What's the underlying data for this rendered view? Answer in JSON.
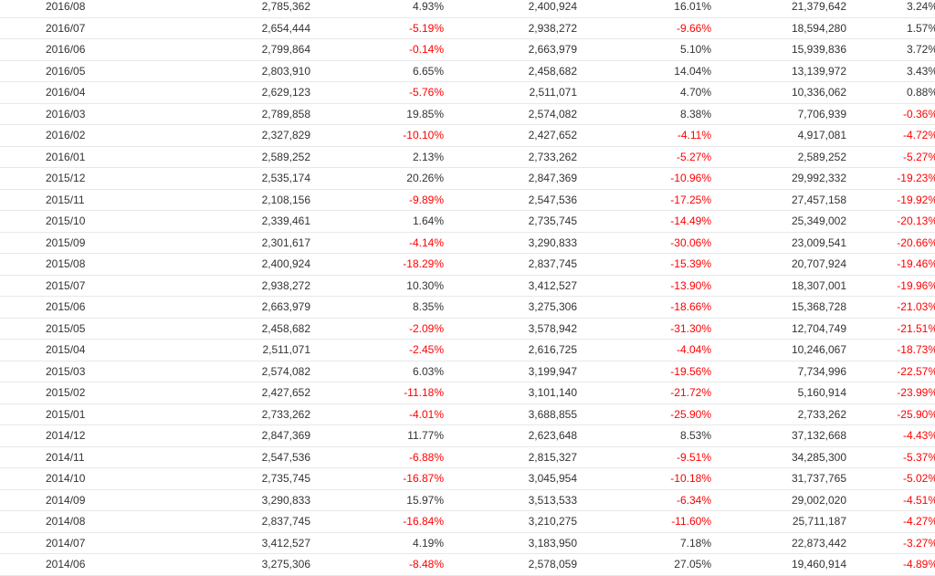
{
  "colors": {
    "negative": "#ff0000",
    "positive": "#333333",
    "row_border": "#e8e8e8"
  },
  "rows": [
    [
      "2016/08",
      "2,785,362",
      "4.93%",
      "2,400,924",
      "16.01%",
      "21,379,642",
      "3.24%"
    ],
    [
      "2016/07",
      "2,654,444",
      "-5.19%",
      "2,938,272",
      "-9.66%",
      "18,594,280",
      "1.57%"
    ],
    [
      "2016/06",
      "2,799,864",
      "-0.14%",
      "2,663,979",
      "5.10%",
      "15,939,836",
      "3.72%"
    ],
    [
      "2016/05",
      "2,803,910",
      "6.65%",
      "2,458,682",
      "14.04%",
      "13,139,972",
      "3.43%"
    ],
    [
      "2016/04",
      "2,629,123",
      "-5.76%",
      "2,511,071",
      "4.70%",
      "10,336,062",
      "0.88%"
    ],
    [
      "2016/03",
      "2,789,858",
      "19.85%",
      "2,574,082",
      "8.38%",
      "7,706,939",
      "-0.36%"
    ],
    [
      "2016/02",
      "2,327,829",
      "-10.10%",
      "2,427,652",
      "-4.11%",
      "4,917,081",
      "-4.72%"
    ],
    [
      "2016/01",
      "2,589,252",
      "2.13%",
      "2,733,262",
      "-5.27%",
      "2,589,252",
      "-5.27%"
    ],
    [
      "2015/12",
      "2,535,174",
      "20.26%",
      "2,847,369",
      "-10.96%",
      "29,992,332",
      "-19.23%"
    ],
    [
      "2015/11",
      "2,108,156",
      "-9.89%",
      "2,547,536",
      "-17.25%",
      "27,457,158",
      "-19.92%"
    ],
    [
      "2015/10",
      "2,339,461",
      "1.64%",
      "2,735,745",
      "-14.49%",
      "25,349,002",
      "-20.13%"
    ],
    [
      "2015/09",
      "2,301,617",
      "-4.14%",
      "3,290,833",
      "-30.06%",
      "23,009,541",
      "-20.66%"
    ],
    [
      "2015/08",
      "2,400,924",
      "-18.29%",
      "2,837,745",
      "-15.39%",
      "20,707,924",
      "-19.46%"
    ],
    [
      "2015/07",
      "2,938,272",
      "10.30%",
      "3,412,527",
      "-13.90%",
      "18,307,001",
      "-19.96%"
    ],
    [
      "2015/06",
      "2,663,979",
      "8.35%",
      "3,275,306",
      "-18.66%",
      "15,368,728",
      "-21.03%"
    ],
    [
      "2015/05",
      "2,458,682",
      "-2.09%",
      "3,578,942",
      "-31.30%",
      "12,704,749",
      "-21.51%"
    ],
    [
      "2015/04",
      "2,511,071",
      "-2.45%",
      "2,616,725",
      "-4.04%",
      "10,246,067",
      "-18.73%"
    ],
    [
      "2015/03",
      "2,574,082",
      "6.03%",
      "3,199,947",
      "-19.56%",
      "7,734,996",
      "-22.57%"
    ],
    [
      "2015/02",
      "2,427,652",
      "-11.18%",
      "3,101,140",
      "-21.72%",
      "5,160,914",
      "-23.99%"
    ],
    [
      "2015/01",
      "2,733,262",
      "-4.01%",
      "3,688,855",
      "-25.90%",
      "2,733,262",
      "-25.90%"
    ],
    [
      "2014/12",
      "2,847,369",
      "11.77%",
      "2,623,648",
      "8.53%",
      "37,132,668",
      "-4.43%"
    ],
    [
      "2014/11",
      "2,547,536",
      "-6.88%",
      "2,815,327",
      "-9.51%",
      "34,285,300",
      "-5.37%"
    ],
    [
      "2014/10",
      "2,735,745",
      "-16.87%",
      "3,045,954",
      "-10.18%",
      "31,737,765",
      "-5.02%"
    ],
    [
      "2014/09",
      "3,290,833",
      "15.97%",
      "3,513,533",
      "-6.34%",
      "29,002,020",
      "-4.51%"
    ],
    [
      "2014/08",
      "2,837,745",
      "-16.84%",
      "3,210,275",
      "-11.60%",
      "25,711,187",
      "-4.27%"
    ],
    [
      "2014/07",
      "3,412,527",
      "4.19%",
      "3,183,950",
      "7.18%",
      "22,873,442",
      "-3.27%"
    ],
    [
      "2014/06",
      "3,275,306",
      "-8.48%",
      "2,578,059",
      "27.05%",
      "19,460,914",
      "-4.89%"
    ]
  ]
}
